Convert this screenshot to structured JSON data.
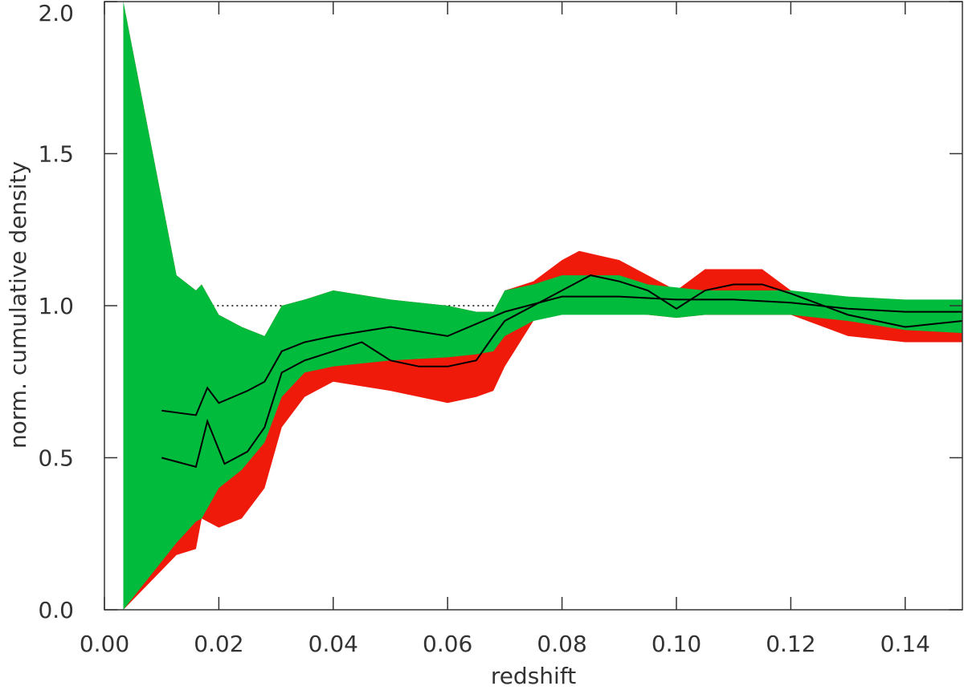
{
  "chart_data": {
    "type": "band",
    "xlabel": "redshift",
    "ylabel": "norm. cumulative density",
    "xlim": [
      0,
      0.15
    ],
    "ylim": [
      0,
      2.0
    ],
    "xticks": [
      {
        "value": 0,
        "label": "0.00"
      },
      {
        "value": 0.02,
        "label": "0.02"
      },
      {
        "value": 0.04,
        "label": "0.04"
      },
      {
        "value": 0.06,
        "label": "0.06"
      },
      {
        "value": 0.08,
        "label": "0.08"
      },
      {
        "value": 0.1,
        "label": "0.10"
      },
      {
        "value": 0.12,
        "label": "0.12"
      },
      {
        "value": 0.14,
        "label": "0.14"
      }
    ],
    "yticks": [
      {
        "value": 0,
        "label": "0.0"
      },
      {
        "value": 0.5,
        "label": "0.5"
      },
      {
        "value": 1,
        "label": "1.0"
      },
      {
        "value": 1.5,
        "label": "1.5"
      },
      {
        "value": 2,
        "label": "2.0"
      }
    ],
    "reference_line": {
      "y": 1.0,
      "x": [
        0.0155,
        0.15
      ],
      "color": "#000000"
    },
    "bands": [
      {
        "color": "#f01a0a",
        "x": [
          0.0033,
          0.0126,
          0.016,
          0.017,
          0.02,
          0.024,
          0.028,
          0.031,
          0.035,
          0.04,
          0.05,
          0.06,
          0.065,
          0.068,
          0.07,
          0.075,
          0.08,
          0.083,
          0.09,
          0.095,
          0.1,
          0.105,
          0.11,
          0.115,
          0.12,
          0.13,
          0.14,
          0.15
        ],
        "upper": [
          2.0,
          1.1,
          1.05,
          1.07,
          0.97,
          0.93,
          0.9,
          1.0,
          1.02,
          1.05,
          1.02,
          1.0,
          0.98,
          0.98,
          1.05,
          1.08,
          1.15,
          1.18,
          1.15,
          1.1,
          1.05,
          1.12,
          1.12,
          1.12,
          1.05,
          1.0,
          0.97,
          0.95
        ],
        "lower": [
          0,
          0.18,
          0.2,
          0.3,
          0.27,
          0.3,
          0.4,
          0.6,
          0.7,
          0.75,
          0.72,
          0.68,
          0.7,
          0.72,
          0.8,
          0.95,
          0.98,
          0.98,
          0.98,
          0.97,
          0.96,
          0.97,
          0.97,
          0.97,
          0.97,
          0.9,
          0.88,
          0.88
        ]
      },
      {
        "color": "#00bb3c",
        "x": [
          0.0033,
          0.0126,
          0.016,
          0.017,
          0.02,
          0.024,
          0.028,
          0.031,
          0.035,
          0.04,
          0.05,
          0.06,
          0.065,
          0.068,
          0.07,
          0.075,
          0.08,
          0.083,
          0.09,
          0.095,
          0.1,
          0.105,
          0.11,
          0.115,
          0.12,
          0.13,
          0.14,
          0.15
        ],
        "upper": [
          2.0,
          1.1,
          1.05,
          1.07,
          0.97,
          0.93,
          0.9,
          1.0,
          1.02,
          1.05,
          1.02,
          1.0,
          0.98,
          0.98,
          1.05,
          1.07,
          1.1,
          1.1,
          1.1,
          1.07,
          1.06,
          1.05,
          1.05,
          1.05,
          1.05,
          1.03,
          1.02,
          1.02
        ],
        "lower": [
          0,
          0.22,
          0.29,
          0.3,
          0.4,
          0.46,
          0.55,
          0.7,
          0.78,
          0.8,
          0.82,
          0.83,
          0.84,
          0.85,
          0.9,
          0.95,
          0.97,
          0.97,
          0.97,
          0.97,
          0.96,
          0.97,
          0.97,
          0.97,
          0.97,
          0.95,
          0.92,
          0.91
        ]
      }
    ],
    "lines": [
      {
        "color": "#000000",
        "x": [
          0.01,
          0.016,
          0.018,
          0.02,
          0.025,
          0.028,
          0.031,
          0.035,
          0.04,
          0.05,
          0.06,
          0.07,
          0.08,
          0.09,
          0.1,
          0.11,
          0.12,
          0.13,
          0.14,
          0.15
        ],
        "values": [
          0.655,
          0.64,
          0.73,
          0.68,
          0.72,
          0.75,
          0.85,
          0.88,
          0.9,
          0.93,
          0.9,
          0.98,
          1.03,
          1.03,
          1.02,
          1.02,
          1.01,
          0.99,
          0.98,
          0.98
        ]
      },
      {
        "color": "#000000",
        "x": [
          0.01,
          0.016,
          0.018,
          0.021,
          0.025,
          0.028,
          0.031,
          0.035,
          0.04,
          0.045,
          0.05,
          0.055,
          0.06,
          0.065,
          0.068,
          0.07,
          0.08,
          0.085,
          0.09,
          0.095,
          0.1,
          0.105,
          0.11,
          0.115,
          0.12,
          0.13,
          0.14,
          0.15
        ],
        "values": [
          0.5,
          0.47,
          0.62,
          0.48,
          0.52,
          0.6,
          0.78,
          0.82,
          0.85,
          0.88,
          0.82,
          0.8,
          0.8,
          0.82,
          0.9,
          0.95,
          1.05,
          1.1,
          1.08,
          1.05,
          0.99,
          1.05,
          1.07,
          1.07,
          1.04,
          0.97,
          0.93,
          0.95
        ]
      }
    ]
  }
}
